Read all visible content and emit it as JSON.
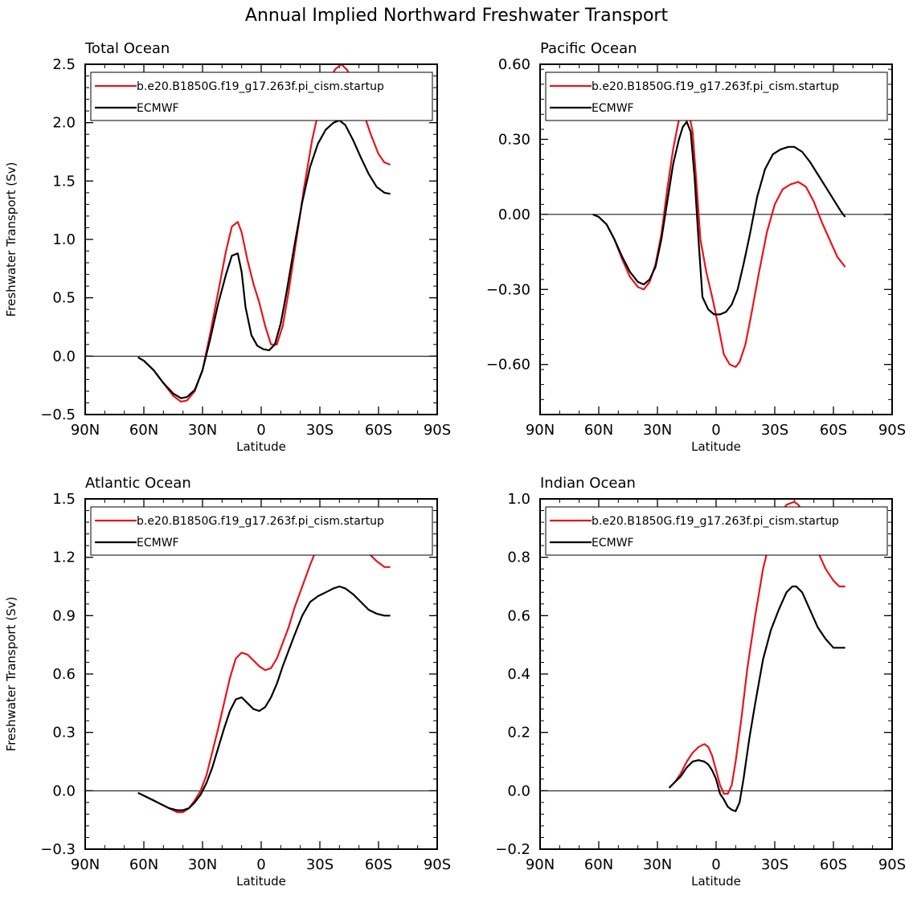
{
  "figure_title": "Annual Implied Northward Freshwater Transport",
  "colors": {
    "model": "#e8141c",
    "obs": "#000000",
    "axis": "#000000"
  },
  "chart_data": [
    {
      "type": "line",
      "title": "Total Ocean",
      "xlabel": "Latitude",
      "ylabel": "Freshwater Transport (Sv)",
      "xlim": [
        -90,
        90
      ],
      "x_ticks": [
        -90,
        -60,
        -30,
        0,
        30,
        60,
        90
      ],
      "x_tick_labels": [
        "90N",
        "60N",
        "30N",
        "0",
        "30S",
        "60S",
        "90S"
      ],
      "ylim": [
        -0.5,
        2.5
      ],
      "y_ticks": [
        -0.5,
        0,
        0.5,
        1,
        1.5,
        2,
        2.5
      ],
      "y_tick_labels": [
        "−0.5",
        "0.0",
        "0.5",
        "1.0",
        "1.5",
        "2.0",
        "2.5"
      ],
      "zero_line": true,
      "legend_position": "top",
      "series": [
        {
          "name": "b.e20.B1850G.f19_g17.263f.pi_cism.startup",
          "color": "#e8141c",
          "x": [
            -63,
            -60,
            -55,
            -50,
            -45,
            -41,
            -38,
            -34,
            -30,
            -26,
            -22,
            -18,
            -15,
            -12,
            -10,
            -7,
            -4,
            -1,
            2,
            5,
            8,
            11,
            14,
            18,
            22,
            26,
            30,
            34,
            38,
            41,
            44,
            48,
            52,
            56,
            60,
            63,
            66
          ],
          "values": [
            -0.01,
            -0.04,
            -0.12,
            -0.23,
            -0.34,
            -0.39,
            -0.38,
            -0.3,
            -0.12,
            0.2,
            0.55,
            0.9,
            1.11,
            1.15,
            1.06,
            0.82,
            0.62,
            0.46,
            0.26,
            0.1,
            0.1,
            0.26,
            0.55,
            1.0,
            1.45,
            1.85,
            2.15,
            2.35,
            2.46,
            2.5,
            2.45,
            2.3,
            2.1,
            1.9,
            1.73,
            1.66,
            1.64
          ]
        },
        {
          "name": "ECMWF",
          "color": "#000000",
          "x": [
            -63,
            -60,
            -55,
            -50,
            -45,
            -41,
            -38,
            -34,
            -30,
            -26,
            -22,
            -18,
            -15,
            -12,
            -10,
            -8,
            -5,
            -2,
            1,
            4,
            7,
            10,
            13,
            17,
            21,
            25,
            29,
            33,
            37,
            40,
            43,
            47,
            51,
            55,
            59,
            63,
            66
          ],
          "values": [
            -0.01,
            -0.04,
            -0.12,
            -0.23,
            -0.32,
            -0.36,
            -0.35,
            -0.29,
            -0.12,
            0.15,
            0.45,
            0.7,
            0.86,
            0.88,
            0.72,
            0.42,
            0.18,
            0.09,
            0.06,
            0.05,
            0.1,
            0.28,
            0.55,
            0.95,
            1.32,
            1.62,
            1.82,
            1.94,
            2.0,
            2.02,
            1.98,
            1.85,
            1.7,
            1.56,
            1.45,
            1.4,
            1.39
          ]
        }
      ]
    },
    {
      "type": "line",
      "title": "Pacific Ocean",
      "xlabel": "Latitude",
      "ylabel": "",
      "xlim": [
        -90,
        90
      ],
      "x_ticks": [
        -90,
        -60,
        -30,
        0,
        30,
        60,
        90
      ],
      "x_tick_labels": [
        "90N",
        "60N",
        "30N",
        "0",
        "30S",
        "60S",
        "90S"
      ],
      "ylim": [
        -0.8,
        0.6
      ],
      "y_ticks": [
        -0.6,
        -0.3,
        0,
        0.3,
        0.6
      ],
      "y_tick_labels": [
        "−0.60",
        "−0.30",
        "0.00",
        "0.30",
        "0.60"
      ],
      "zero_line": true,
      "legend_position": "top",
      "series": [
        {
          "name": "b.e20.B1850G.f19_g17.263f.pi_cism.startup",
          "color": "#e8141c",
          "x": [
            -63,
            -60,
            -56,
            -52,
            -48,
            -44,
            -40,
            -37,
            -34,
            -31,
            -28,
            -25,
            -22,
            -19,
            -16,
            -14,
            -12,
            -10,
            -8,
            -5,
            -2,
            1,
            4,
            7,
            10,
            12,
            15,
            18,
            22,
            26,
            30,
            34,
            38,
            42,
            46,
            50,
            54,
            58,
            62,
            66
          ],
          "values": [
            0,
            -0.01,
            -0.04,
            -0.1,
            -0.18,
            -0.25,
            -0.29,
            -0.3,
            -0.27,
            -0.2,
            -0.08,
            0.1,
            0.26,
            0.38,
            0.41,
            0.41,
            0.33,
            0.12,
            -0.1,
            -0.23,
            -0.33,
            -0.44,
            -0.56,
            -0.6,
            -0.61,
            -0.59,
            -0.52,
            -0.4,
            -0.23,
            -0.07,
            0.04,
            0.1,
            0.12,
            0.13,
            0.11,
            0.05,
            -0.03,
            -0.1,
            -0.17,
            -0.21
          ]
        },
        {
          "name": "ECMWF",
          "color": "#000000",
          "x": [
            -63,
            -60,
            -56,
            -52,
            -48,
            -44,
            -40,
            -37,
            -34,
            -31,
            -28,
            -25,
            -22,
            -19,
            -17,
            -15,
            -13,
            -11,
            -9,
            -7,
            -4,
            -1,
            2,
            5,
            8,
            11,
            14,
            17,
            21,
            25,
            29,
            33,
            37,
            40,
            44,
            48,
            52,
            56,
            60,
            64,
            66
          ],
          "values": [
            0,
            -0.01,
            -0.04,
            -0.1,
            -0.17,
            -0.23,
            -0.27,
            -0.28,
            -0.26,
            -0.21,
            -0.1,
            0.05,
            0.2,
            0.3,
            0.35,
            0.37,
            0.33,
            0.15,
            -0.1,
            -0.33,
            -0.38,
            -0.4,
            -0.4,
            -0.39,
            -0.36,
            -0.3,
            -0.2,
            -0.09,
            0.07,
            0.18,
            0.24,
            0.26,
            0.27,
            0.27,
            0.25,
            0.21,
            0.16,
            0.11,
            0.06,
            0.01,
            -0.01
          ]
        }
      ]
    },
    {
      "type": "line",
      "title": "Atlantic Ocean",
      "xlabel": "Latitude",
      "ylabel": "Freshwater Transport (Sv)",
      "xlim": [
        -90,
        90
      ],
      "x_ticks": [
        -90,
        -60,
        -30,
        0,
        30,
        60,
        90
      ],
      "x_tick_labels": [
        "90N",
        "60N",
        "30N",
        "0",
        "30S",
        "60S",
        "90S"
      ],
      "ylim": [
        -0.3,
        1.5
      ],
      "y_ticks": [
        -0.3,
        0,
        0.3,
        0.6,
        0.9,
        1.2,
        1.5
      ],
      "y_tick_labels": [
        "−0.3",
        "0.0",
        "0.3",
        "0.6",
        "0.9",
        "1.2",
        "1.5"
      ],
      "zero_line": true,
      "legend_position": "top",
      "series": [
        {
          "name": "b.e20.B1850G.f19_g17.263f.pi_cism.startup",
          "color": "#e8141c",
          "x": [
            -63,
            -59,
            -55,
            -51,
            -47,
            -43,
            -40,
            -37,
            -34,
            -31,
            -28,
            -25,
            -22,
            -19,
            -16,
            -13,
            -10,
            -7,
            -4,
            -1,
            2,
            5,
            8,
            11,
            14,
            17,
            21,
            25,
            29,
            33,
            37,
            40,
            43,
            47,
            51,
            55,
            59,
            63,
            66
          ],
          "values": [
            -0.01,
            -0.03,
            -0.05,
            -0.07,
            -0.09,
            -0.11,
            -0.11,
            -0.09,
            -0.05,
            0.0,
            0.08,
            0.2,
            0.32,
            0.45,
            0.58,
            0.68,
            0.71,
            0.7,
            0.67,
            0.64,
            0.62,
            0.63,
            0.68,
            0.76,
            0.84,
            0.94,
            1.05,
            1.16,
            1.26,
            1.32,
            1.36,
            1.37,
            1.36,
            1.31,
            1.27,
            1.22,
            1.18,
            1.15,
            1.15
          ]
        },
        {
          "name": "ECMWF",
          "color": "#000000",
          "x": [
            -63,
            -59,
            -55,
            -51,
            -47,
            -43,
            -40,
            -37,
            -34,
            -31,
            -28,
            -25,
            -22,
            -19,
            -16,
            -13,
            -10,
            -7,
            -4,
            -1,
            2,
            5,
            8,
            11,
            14,
            17,
            21,
            25,
            29,
            33,
            37,
            40,
            43,
            47,
            51,
            55,
            59,
            63,
            66
          ],
          "values": [
            -0.01,
            -0.03,
            -0.05,
            -0.07,
            -0.09,
            -0.1,
            -0.1,
            -0.09,
            -0.06,
            -0.02,
            0.04,
            0.12,
            0.22,
            0.32,
            0.41,
            0.47,
            0.48,
            0.45,
            0.42,
            0.41,
            0.43,
            0.48,
            0.55,
            0.64,
            0.72,
            0.8,
            0.9,
            0.97,
            1.0,
            1.02,
            1.04,
            1.05,
            1.04,
            1.01,
            0.97,
            0.93,
            0.91,
            0.9,
            0.9
          ]
        }
      ]
    },
    {
      "type": "line",
      "title": "Indian Ocean",
      "xlabel": "Latitude",
      "ylabel": "",
      "xlim": [
        -90,
        90
      ],
      "x_ticks": [
        -90,
        -60,
        -30,
        0,
        30,
        60,
        90
      ],
      "x_tick_labels": [
        "90N",
        "60N",
        "30N",
        "0",
        "30S",
        "60S",
        "90S"
      ],
      "ylim": [
        -0.2,
        1.0
      ],
      "y_ticks": [
        -0.2,
        0,
        0.2,
        0.4,
        0.6,
        0.8,
        1.0
      ],
      "y_tick_labels": [
        "−0.2",
        "0.0",
        "0.2",
        "0.4",
        "0.6",
        "0.8",
        "1.0"
      ],
      "zero_line": true,
      "legend_position": "top",
      "series": [
        {
          "name": "b.e20.B1850G.f19_g17.263f.pi_cism.startup",
          "color": "#e8141c",
          "x": [
            -24,
            -21,
            -18,
            -15,
            -12,
            -9,
            -6,
            -4,
            -2,
            0,
            2,
            4,
            6,
            8,
            10,
            13,
            16,
            20,
            24,
            28,
            32,
            36,
            40,
            42,
            44,
            48,
            52,
            56,
            60,
            63,
            66
          ],
          "values": [
            0.01,
            0.03,
            0.06,
            0.1,
            0.13,
            0.15,
            0.16,
            0.15,
            0.12,
            0.07,
            0.02,
            -0.01,
            -0.01,
            0.02,
            0.1,
            0.25,
            0.42,
            0.6,
            0.76,
            0.87,
            0.94,
            0.98,
            0.99,
            0.98,
            0.96,
            0.89,
            0.82,
            0.76,
            0.72,
            0.7,
            0.7
          ]
        },
        {
          "name": "ECMWF",
          "color": "#000000",
          "x": [
            -24,
            -21,
            -18,
            -15,
            -12,
            -9,
            -6,
            -4,
            -2,
            0,
            2,
            4,
            6,
            8,
            10,
            12,
            14,
            17,
            20,
            24,
            28,
            32,
            36,
            39,
            41,
            44,
            48,
            52,
            56,
            60,
            63,
            66
          ],
          "values": [
            0.01,
            0.03,
            0.05,
            0.08,
            0.1,
            0.105,
            0.1,
            0.09,
            0.07,
            0.04,
            -0.01,
            -0.03,
            -0.055,
            -0.065,
            -0.07,
            -0.04,
            0.04,
            0.18,
            0.3,
            0.45,
            0.55,
            0.62,
            0.68,
            0.7,
            0.7,
            0.68,
            0.62,
            0.56,
            0.52,
            0.49,
            0.49,
            0.49
          ]
        }
      ]
    }
  ]
}
